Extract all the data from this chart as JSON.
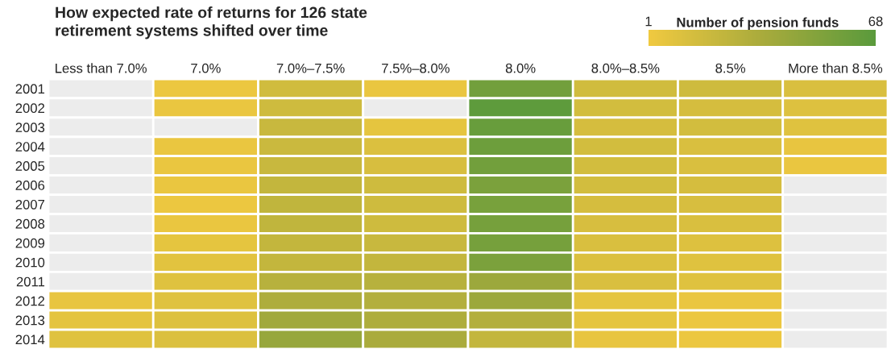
{
  "chart_data": {
    "type": "heatmap",
    "title": "How expected rate of returns for 126 state\nretirement systems shifted over time",
    "clabel": "Number of pension funds",
    "categories": [
      "Less than 7.0%",
      "7.0%",
      "7.0%–7.5%",
      "7.5%–8.0%",
      "8.0%",
      "8.0%–8.5%",
      "8.5%",
      "More than 8.5%"
    ],
    "y_categories": [
      "2001",
      "2002",
      "2003",
      "2004",
      "2005",
      "2006",
      "2007",
      "2008",
      "2009",
      "2010",
      "2011",
      "2012",
      "2013",
      "2014"
    ],
    "cells": [
      [
        null,
        3,
        16,
        4,
        58,
        16,
        17,
        12
      ],
      [
        null,
        4,
        17,
        null,
        66,
        15,
        14,
        10
      ],
      [
        null,
        null,
        20,
        6,
        62,
        14,
        15,
        9
      ],
      [
        null,
        4,
        19,
        11,
        60,
        15,
        12,
        5
      ],
      [
        null,
        4,
        20,
        13,
        58,
        15,
        12,
        4
      ],
      [
        null,
        4,
        22,
        17,
        54,
        15,
        14,
        null
      ],
      [
        null,
        3,
        24,
        17,
        55,
        14,
        13,
        null
      ],
      [
        null,
        4,
        24,
        17,
        56,
        13,
        12,
        null
      ],
      [
        null,
        6,
        22,
        20,
        56,
        12,
        10,
        null
      ],
      [
        null,
        8,
        22,
        22,
        54,
        11,
        9,
        null
      ],
      [
        null,
        9,
        28,
        28,
        40,
        12,
        9,
        null
      ],
      [
        5,
        9,
        32,
        30,
        40,
        6,
        4,
        null
      ],
      [
        7,
        10,
        38,
        32,
        30,
        6,
        3,
        null
      ],
      [
        9,
        11,
        42,
        34,
        22,
        5,
        3,
        null
      ]
    ],
    "clim": [
      1,
      68
    ],
    "cticks": [
      1,
      68
    ]
  }
}
